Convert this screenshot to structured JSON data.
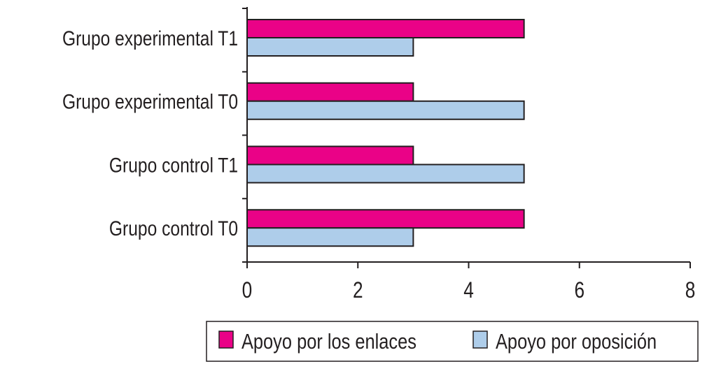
{
  "chart_data": {
    "type": "bar",
    "orientation": "horizontal",
    "categories": [
      "Grupo experimental T1",
      "Grupo experimental T0",
      "Grupo control T1",
      "Grupo control T0"
    ],
    "series": [
      {
        "name": "Apoyo por los enlaces",
        "values": [
          5,
          3,
          3,
          5
        ],
        "color": "#EA0287"
      },
      {
        "name": "Apoyo por oposición",
        "values": [
          3,
          5,
          5,
          3
        ],
        "color": "#AECDEA"
      }
    ],
    "xlim": [
      0,
      8
    ],
    "xticks": [
      "0",
      "2",
      "4",
      "6",
      "8"
    ],
    "title": "",
    "xlabel": "",
    "ylabel": "",
    "grid": false,
    "legend_position": "bottom"
  }
}
